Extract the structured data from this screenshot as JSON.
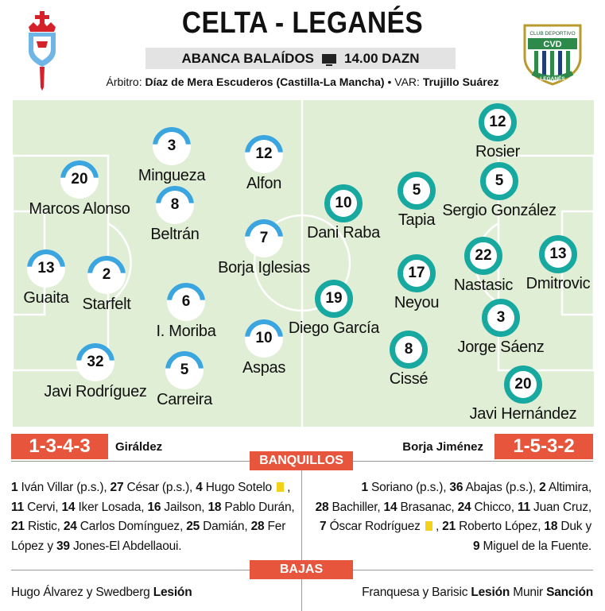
{
  "header": {
    "title": "CELTA - LEGANÉS",
    "stadium": "ABANCA BALAÍDOS",
    "broadcast": "14.00 DAZN",
    "referee_label": "Árbitro:",
    "referee": "Díaz de Mera Escuderos (Castilla-La Mancha)",
    "var_label": "• VAR:",
    "var": "Trujillo Suárez",
    "home_crest_icon": "celta-crest-icon",
    "away_crest_icon": "leganes-crest-icon",
    "away_crest_text": "CLUB DEPORTIVO",
    "away_crest_letters": "CVD",
    "away_crest_name": "LEGANÉS"
  },
  "colors": {
    "celta": "#3aa5de",
    "leganes": "#17a8a0",
    "accent": "#e8553d",
    "pitch": "#dfeed4",
    "yellow_card": "#f2d21a"
  },
  "celta": {
    "formation": "1-3-4-3",
    "coach": "Giráldez",
    "players": [
      {
        "num": "13",
        "name": "Guaita"
      },
      {
        "num": "20",
        "name": "Marcos Alonso"
      },
      {
        "num": "2",
        "name": "Starfelt"
      },
      {
        "num": "32",
        "name": "Javi Rodríguez"
      },
      {
        "num": "3",
        "name": "Mingueza"
      },
      {
        "num": "8",
        "name": "Beltrán"
      },
      {
        "num": "6",
        "name": "I. Moriba"
      },
      {
        "num": "5",
        "name": "Carreira"
      },
      {
        "num": "12",
        "name": "Alfon"
      },
      {
        "num": "7",
        "name": "Borja Iglesias"
      },
      {
        "num": "10",
        "name": "Aspas"
      }
    ]
  },
  "leganes": {
    "formation": "1-5-3-2",
    "coach": "Borja Jiménez",
    "players": [
      {
        "num": "12",
        "name": "Rosier"
      },
      {
        "num": "5",
        "name": "Sergio González"
      },
      {
        "num": "22",
        "name": "Nastasic"
      },
      {
        "num": "13",
        "name": "Dmitrovic"
      },
      {
        "num": "3",
        "name": "Jorge Sáenz"
      },
      {
        "num": "20",
        "name": "Javi Hernández"
      },
      {
        "num": "5",
        "name": "Tapia"
      },
      {
        "num": "17",
        "name": "Neyou"
      },
      {
        "num": "8",
        "name": "Cissé"
      },
      {
        "num": "10",
        "name": "Dani Raba"
      },
      {
        "num": "19",
        "name": "Diego García"
      }
    ]
  },
  "banquillos": {
    "label": "BANQUILLOS",
    "celta": [
      [
        {
          "b": "1"
        },
        {
          "t": " Iván Villar (p.s.), "
        },
        {
          "b": "27"
        },
        {
          "t": " César (p.s.), "
        },
        {
          "b": "4"
        },
        {
          "t": " Hugo Sotelo "
        },
        {
          "card": true
        },
        {
          "t": " ,"
        }
      ],
      [
        {
          "b": "11"
        },
        {
          "t": " Cervi, "
        },
        {
          "b": "14"
        },
        {
          "t": " Iker Losada, "
        },
        {
          "b": "16"
        },
        {
          "t": " Jailson, "
        },
        {
          "b": "18"
        },
        {
          "t": " Pablo Durán,"
        }
      ],
      [
        {
          "b": "21"
        },
        {
          "t": " Ristic, "
        },
        {
          "b": "24"
        },
        {
          "t": " Carlos Domínguez, "
        },
        {
          "b": "25"
        },
        {
          "t": " Damián, "
        },
        {
          "b": "28"
        },
        {
          "t": " Fer"
        }
      ],
      [
        {
          "t": "López y "
        },
        {
          "b": "39"
        },
        {
          "t": " Jones-El Abdellaoui."
        }
      ]
    ],
    "leganes": [
      [
        {
          "b": "1"
        },
        {
          "t": " Soriano (p.s.), "
        },
        {
          "b": "36"
        },
        {
          "t": " Abajas (p.s.), "
        },
        {
          "b": "2"
        },
        {
          "t": " Altimira,"
        }
      ],
      [
        {
          "b": "28"
        },
        {
          "t": " Bachiller, "
        },
        {
          "b": "14"
        },
        {
          "t": " Brasanac, "
        },
        {
          "b": "24"
        },
        {
          "t": " Chicco, "
        },
        {
          "b": "11"
        },
        {
          "t": " Juan Cruz,"
        }
      ],
      [
        {
          "b": "7"
        },
        {
          "t": " Óscar Rodríguez "
        },
        {
          "card": true
        },
        {
          "t": " , "
        },
        {
          "b": "21"
        },
        {
          "t": " Roberto López, "
        },
        {
          "b": "18"
        },
        {
          "t": " Duk y"
        }
      ],
      [
        {
          "b": "9"
        },
        {
          "t": " Miguel de la Fuente."
        }
      ]
    ]
  },
  "bajas": {
    "label": "BAJAS",
    "celta_names": "Hugo Álvarez y Swedberg ",
    "celta_reason": "Lesión",
    "leganes_names": "Franquesa y Barisic ",
    "leganes_reason1": "Lesión",
    "leganes_names2": " Munir ",
    "leganes_reason2": "Sanción"
  }
}
